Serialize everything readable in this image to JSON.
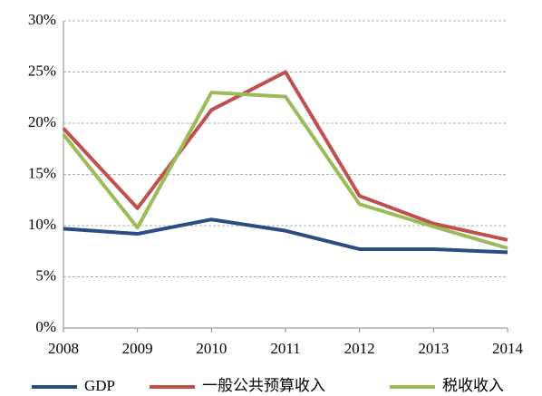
{
  "chart_data": {
    "type": "line",
    "x": [
      2008,
      2009,
      2010,
      2011,
      2012,
      2013,
      2014
    ],
    "xlim": [
      2008,
      2014
    ],
    "xticks": [
      2008,
      2009,
      2010,
      2011,
      2012,
      2013,
      2014
    ],
    "ylim": [
      0,
      30
    ],
    "yticks": [
      {
        "value": 0,
        "label": "0%"
      },
      {
        "value": 5,
        "label": "5%"
      },
      {
        "value": 10,
        "label": "10%"
      },
      {
        "value": 15,
        "label": "15%"
      },
      {
        "value": 20,
        "label": "20%"
      },
      {
        "value": 25,
        "label": "25%"
      },
      {
        "value": 30,
        "label": "30%"
      }
    ],
    "grid": true,
    "legend": "bottom",
    "series": [
      {
        "name": "GDP",
        "color": "#2b4b84",
        "values": [
          9.7,
          9.2,
          10.6,
          9.5,
          7.7,
          7.7,
          7.4
        ]
      },
      {
        "name": "一般公共预算收入",
        "color": "#c0504d",
        "values": [
          19.5,
          11.7,
          21.3,
          25.0,
          12.9,
          10.2,
          8.6
        ]
      },
      {
        "name": "税收收入",
        "color": "#9bbb59",
        "values": [
          18.9,
          9.8,
          23.0,
          22.6,
          12.1,
          9.9,
          7.8
        ]
      }
    ]
  }
}
